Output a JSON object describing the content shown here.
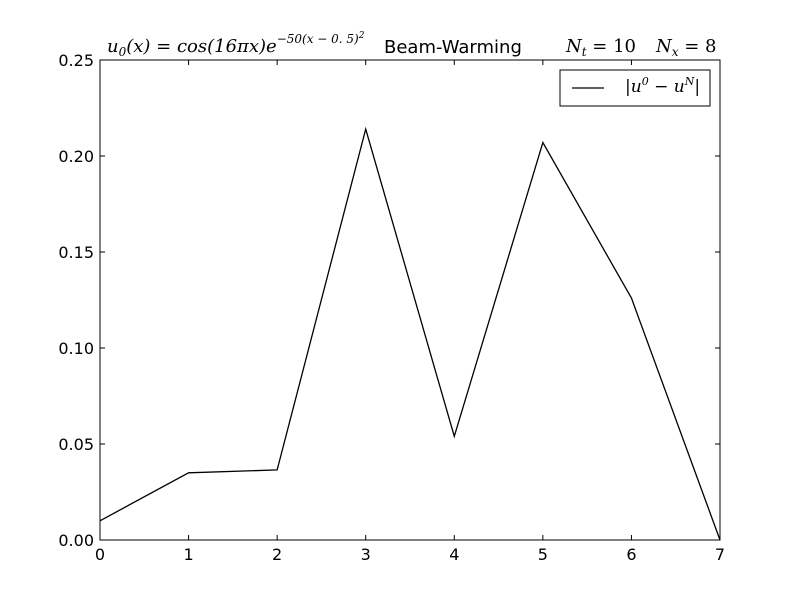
{
  "chart_data": {
    "type": "line",
    "title": {
      "formula_prefix": "u",
      "formula_prefix_sub": "0",
      "formula_body": "(x) = cos(16πx)e",
      "formula_exponent": "−50(x − 0. 5)",
      "formula_exponent_sup": "2",
      "scheme": "Beam-Warming",
      "nt_symbol": "N",
      "nt_sub": "t",
      "nt_value": " = 10",
      "nx_symbol": "N",
      "nx_sub": "x",
      "nx_value": " = 8"
    },
    "legend": {
      "label": "|u⁰ − uᴺ|",
      "label_base1": "|u",
      "label_sup1": "0",
      "label_mid": " − u",
      "label_sup2": "N",
      "label_end": "|",
      "position": "top-right"
    },
    "xlim": [
      0,
      7
    ],
    "ylim": [
      0,
      0.25
    ],
    "x_ticks": [
      "0",
      "1",
      "2",
      "3",
      "4",
      "5",
      "6",
      "7"
    ],
    "y_ticks": [
      "0.00",
      "0.05",
      "0.10",
      "0.15",
      "0.20",
      "0.25"
    ],
    "x": [
      0,
      1,
      2,
      3,
      4,
      5,
      6,
      7
    ],
    "series": [
      {
        "name": "|u⁰ − uᴺ|",
        "color": "#000000",
        "values": [
          0.01,
          0.035,
          0.0365,
          0.214,
          0.054,
          0.207,
          0.126,
          0.0
        ]
      }
    ],
    "grid": false
  }
}
